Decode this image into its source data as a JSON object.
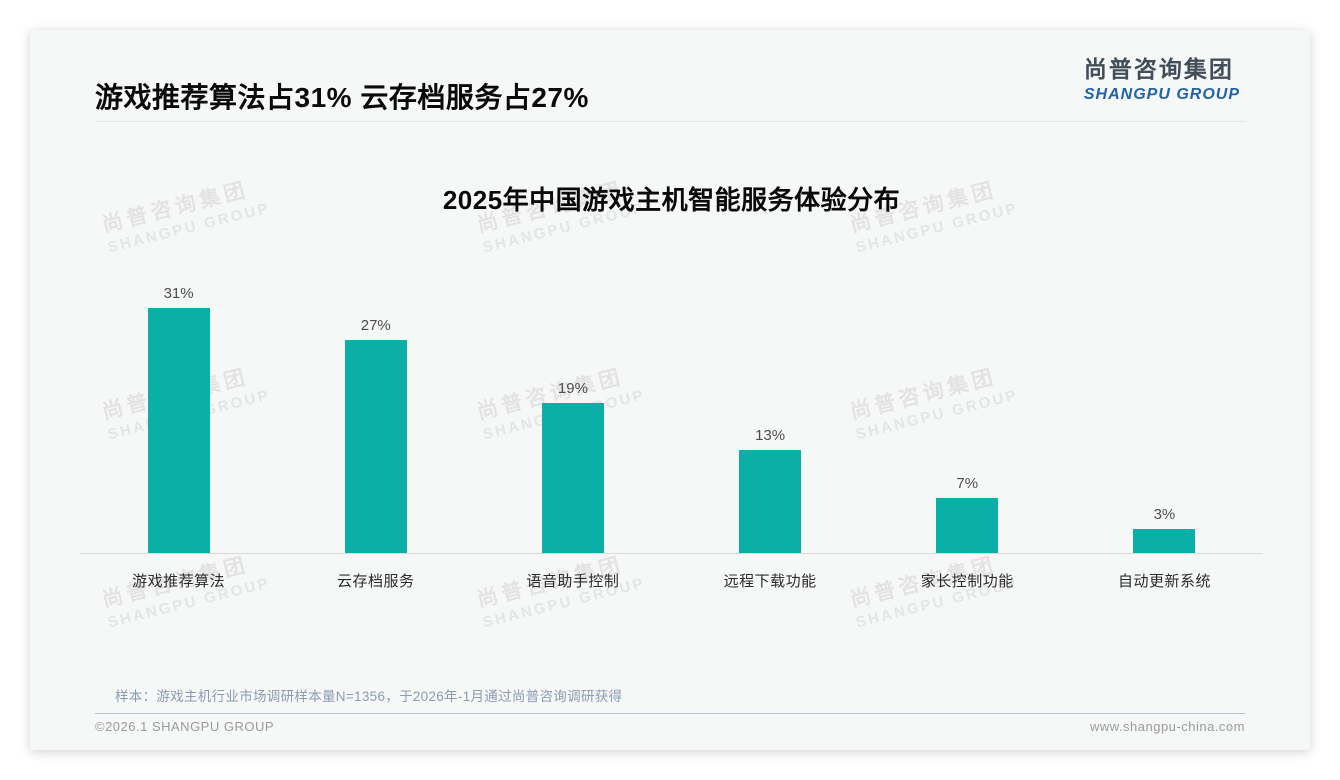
{
  "slide": {
    "title": "游戏推荐算法占31% 云存档服务占27%",
    "logo": {
      "cn": "尚普咨询集团",
      "en": "SHANGPU GROUP"
    },
    "watermark": {
      "cn": "尚普咨询集团",
      "en": "SHANGPU GROUP"
    },
    "note": "样本：游戏主机行业市场调研样本量N=1356，于2026年-1月通过尚普咨询调研获得",
    "footer": {
      "left": "©2026.1 SHANGPU GROUP",
      "right": "www.shangpu-china.com"
    }
  },
  "chart_data": {
    "type": "bar",
    "title": "2025年中国游戏主机智能服务体验分布",
    "categories": [
      "游戏推荐算法",
      "云存档服务",
      "语音助手控制",
      "远程下载功能",
      "家长控制功能",
      "自动更新系统"
    ],
    "values": [
      31,
      27,
      19,
      13,
      7,
      3
    ],
    "unit": "%",
    "data_labels": [
      "31%",
      "27%",
      "19%",
      "13%",
      "7%",
      "3%"
    ],
    "ylim": [
      0,
      33
    ],
    "y_axis_visible": false,
    "x_axis_line": true,
    "grid": false,
    "legend": "none",
    "bar_color": "#0ab0a5"
  },
  "colors": {
    "bar": "#0ab0a5",
    "logo_blue": "#2162a8",
    "logo_dark": "#414d59",
    "note_text": "#8b9bb4",
    "slide_bg": "#f6f7f7"
  }
}
